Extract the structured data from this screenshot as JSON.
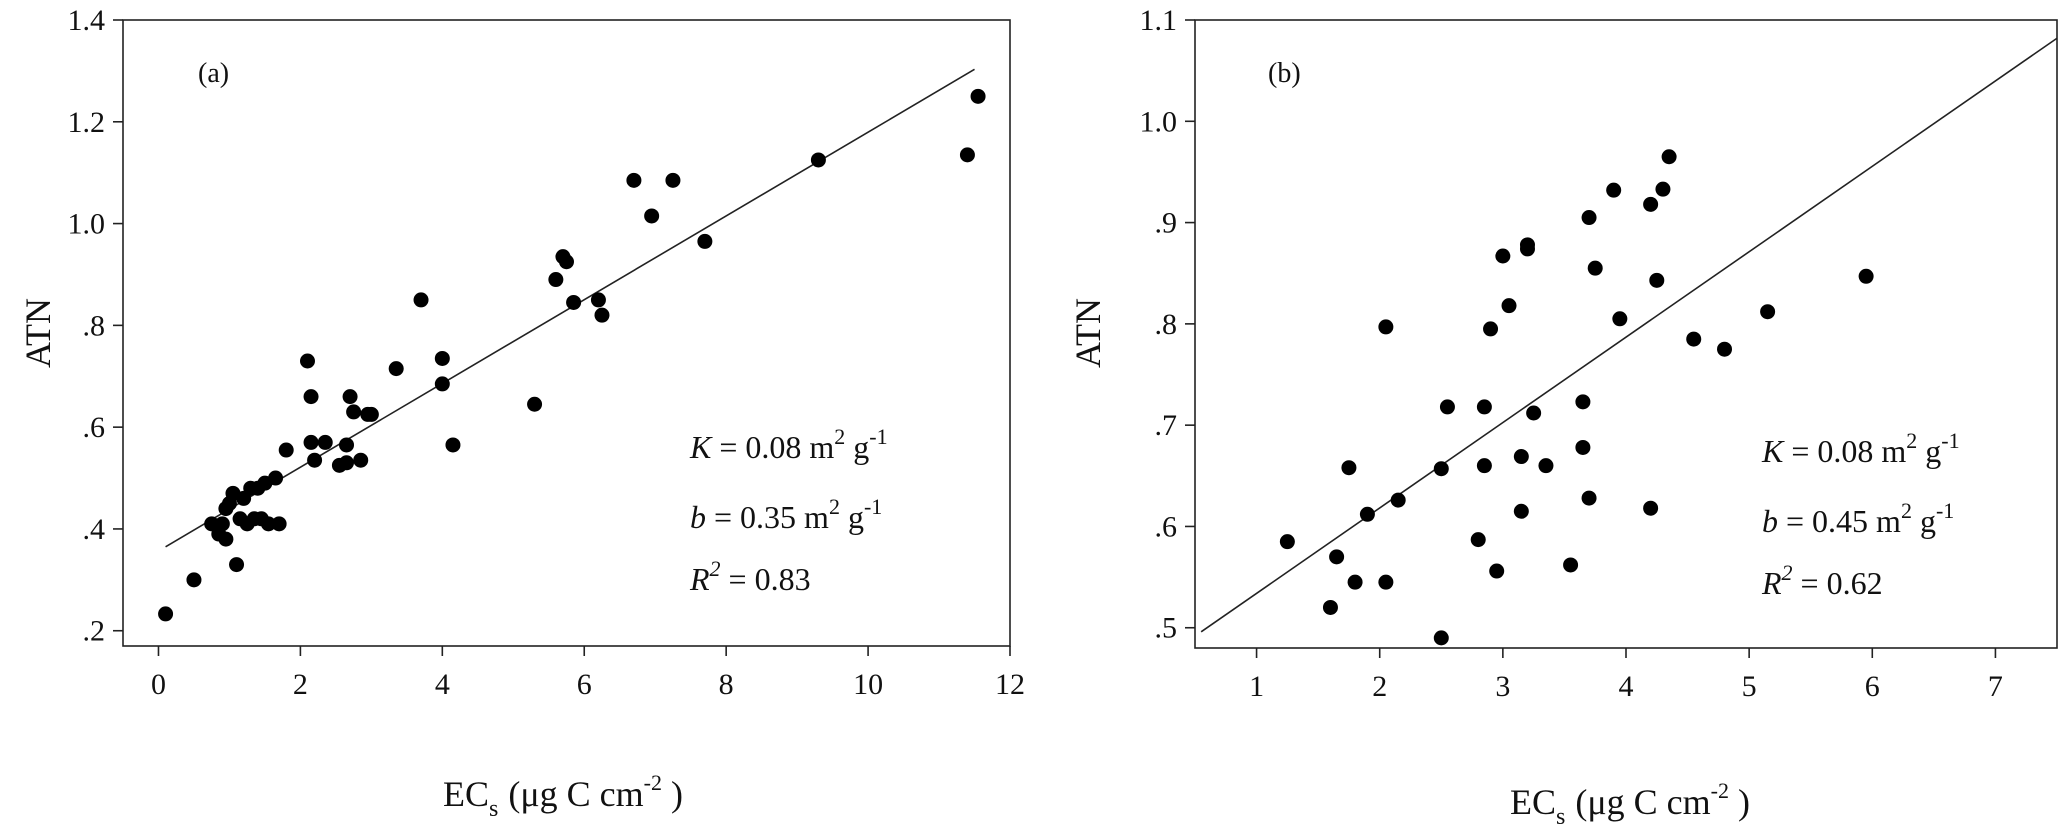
{
  "chart_data": [
    {
      "type": "scatter",
      "panel_label": "(a)",
      "xlabel": {
        "main": "EC",
        "sub": "s",
        "unit": "(μg C cm",
        "unit_sup": "-2",
        "close": " )"
      },
      "ylabel": "ATN",
      "xlim": [
        -0.5,
        12
      ],
      "ylim": [
        0.17,
        1.4
      ],
      "xticks": [
        0,
        2,
        4,
        6,
        8,
        10,
        12
      ],
      "xtick_labels": [
        "0",
        "2",
        "4",
        "6",
        "8",
        "10",
        "12"
      ],
      "yticks": [
        0.2,
        0.4,
        0.6,
        0.8,
        1.0,
        1.2,
        1.4
      ],
      "ytick_labels": [
        ".2",
        ".4",
        ".6",
        ".8",
        "1.0",
        "1.2",
        "1.4"
      ],
      "fit_line": {
        "x": [
          0.1,
          11.5
        ],
        "y": [
          0.365,
          1.303
        ]
      },
      "annotations": {
        "k": {
          "sym": "K",
          "eq": " = 0.08  m",
          "sup1": "2",
          "unit": "  g",
          "sup2": "-1"
        },
        "b": {
          "sym": "b",
          "eq": " = 0.35  m",
          "sup1": "2",
          "unit": "  g",
          "sup2": "-1"
        },
        "r2": {
          "sym": "R",
          "sup": "2",
          "eq": " = 0.83"
        }
      },
      "points": {
        "x": [
          0.1,
          0.5,
          0.75,
          0.85,
          0.9,
          0.95,
          0.95,
          1.0,
          1.05,
          1.1,
          1.15,
          1.2,
          1.25,
          1.3,
          1.35,
          1.4,
          1.45,
          1.5,
          1.55,
          1.65,
          1.7,
          1.8,
          2.1,
          2.15,
          2.15,
          2.2,
          2.35,
          2.55,
          2.65,
          2.65,
          2.7,
          2.75,
          2.85,
          2.95,
          3.0,
          3.35,
          3.7,
          4.0,
          4.0,
          4.15,
          5.3,
          5.6,
          5.7,
          5.75,
          5.85,
          6.2,
          6.25,
          6.7,
          6.95,
          7.25,
          7.7,
          9.3,
          11.4,
          11.55
        ],
        "y": [
          0.233,
          0.3,
          0.41,
          0.39,
          0.41,
          0.38,
          0.44,
          0.45,
          0.47,
          0.33,
          0.42,
          0.46,
          0.41,
          0.48,
          0.42,
          0.48,
          0.42,
          0.49,
          0.41,
          0.5,
          0.41,
          0.555,
          0.73,
          0.66,
          0.57,
          0.535,
          0.57,
          0.525,
          0.565,
          0.53,
          0.66,
          0.63,
          0.535,
          0.625,
          0.625,
          0.715,
          0.85,
          0.735,
          0.685,
          0.565,
          0.645,
          0.89,
          0.935,
          0.925,
          0.845,
          0.85,
          0.82,
          1.085,
          1.015,
          1.085,
          0.965,
          1.125,
          1.135,
          1.25
        ]
      }
    },
    {
      "type": "scatter",
      "panel_label": "(b)",
      "xlabel": {
        "main": "EC",
        "sub": "s",
        "unit": "(μg C cm",
        "unit_sup": "-2",
        "close": " )"
      },
      "ylabel": "ATN",
      "xlim": [
        0.5,
        7.5
      ],
      "ylim": [
        0.48,
        1.1
      ],
      "xticks": [
        1,
        2,
        3,
        4,
        5,
        6,
        7
      ],
      "xtick_labels": [
        "1",
        "2",
        "3",
        "4",
        "5",
        "6",
        "7"
      ],
      "yticks": [
        0.5,
        0.6,
        0.7,
        0.8,
        0.9,
        1.0,
        1.1
      ],
      "ytick_labels": [
        ".5",
        ".6",
        ".7",
        ".8",
        ".9",
        "1.0",
        "1.1"
      ],
      "fit_line": {
        "x": [
          0.55,
          7.5
        ],
        "y": [
          0.496,
          1.082
        ]
      },
      "annotations": {
        "k": {
          "sym": "K",
          "eq": " = 0.08  m",
          "sup1": "2",
          "unit": "  g",
          "sup2": "-1"
        },
        "b": {
          "sym": "b",
          "eq": " = 0.45  m",
          "sup1": "2",
          "unit": "  g",
          "sup2": "-1"
        },
        "r2": {
          "sym": "R",
          "sup": "2",
          "eq": " = 0.62"
        }
      },
      "points": {
        "x": [
          1.25,
          1.6,
          1.65,
          1.75,
          1.8,
          1.9,
          2.05,
          2.05,
          2.15,
          2.5,
          2.5,
          2.55,
          2.8,
          2.85,
          2.85,
          2.9,
          2.95,
          3.0,
          3.05,
          3.15,
          3.15,
          3.2,
          3.2,
          3.25,
          3.35,
          3.55,
          3.65,
          3.65,
          3.7,
          3.7,
          3.75,
          3.9,
          3.95,
          4.2,
          4.2,
          4.25,
          4.3,
          4.35,
          4.55,
          4.8,
          5.15,
          5.95
        ],
        "y": [
          0.585,
          0.52,
          0.57,
          0.658,
          0.545,
          0.612,
          0.545,
          0.797,
          0.626,
          0.49,
          0.657,
          0.718,
          0.587,
          0.66,
          0.718,
          0.795,
          0.556,
          0.867,
          0.818,
          0.615,
          0.669,
          0.874,
          0.878,
          0.712,
          0.66,
          0.562,
          0.678,
          0.723,
          0.628,
          0.905,
          0.855,
          0.932,
          0.805,
          0.618,
          0.918,
          0.843,
          0.933,
          0.965,
          0.785,
          0.775,
          0.812,
          0.847
        ]
      }
    }
  ]
}
